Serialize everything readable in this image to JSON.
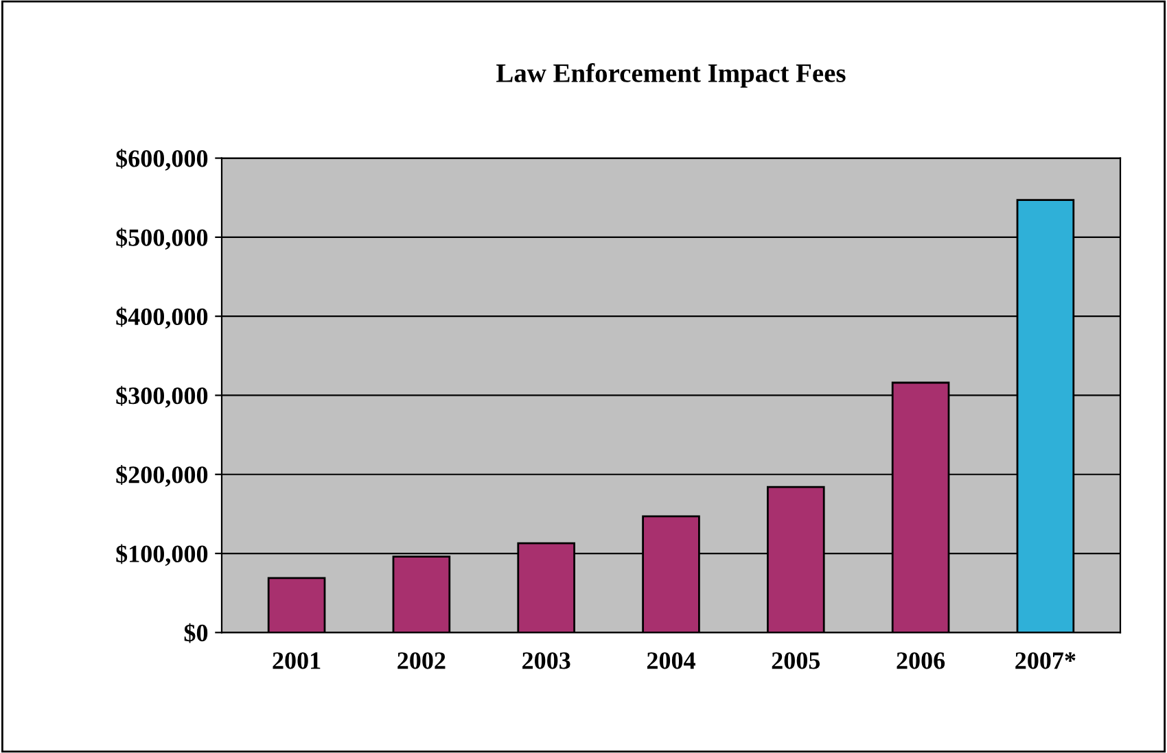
{
  "chart_data": {
    "type": "bar",
    "title": "Law Enforcement Impact Fees",
    "categories": [
      "2001",
      "2002",
      "2003",
      "2004",
      "2005",
      "2006",
      "2007*"
    ],
    "values": [
      69000,
      96000,
      113000,
      147000,
      184000,
      316000,
      547000
    ],
    "colors": [
      "#a8306e",
      "#a8306e",
      "#a8306e",
      "#a8306e",
      "#a8306e",
      "#a8306e",
      "#2fb0d8"
    ],
    "ylim": [
      0,
      600000
    ],
    "yticks": [
      {
        "value": 0,
        "label": "$0"
      },
      {
        "value": 100000,
        "label": "$100,000"
      },
      {
        "value": 200000,
        "label": "$200,000"
      },
      {
        "value": 300000,
        "label": "$300,000"
      },
      {
        "value": 400000,
        "label": "$400,000"
      },
      {
        "value": 500000,
        "label": "$500,000"
      },
      {
        "value": 600000,
        "label": "$600,000"
      }
    ],
    "grid": "y"
  }
}
